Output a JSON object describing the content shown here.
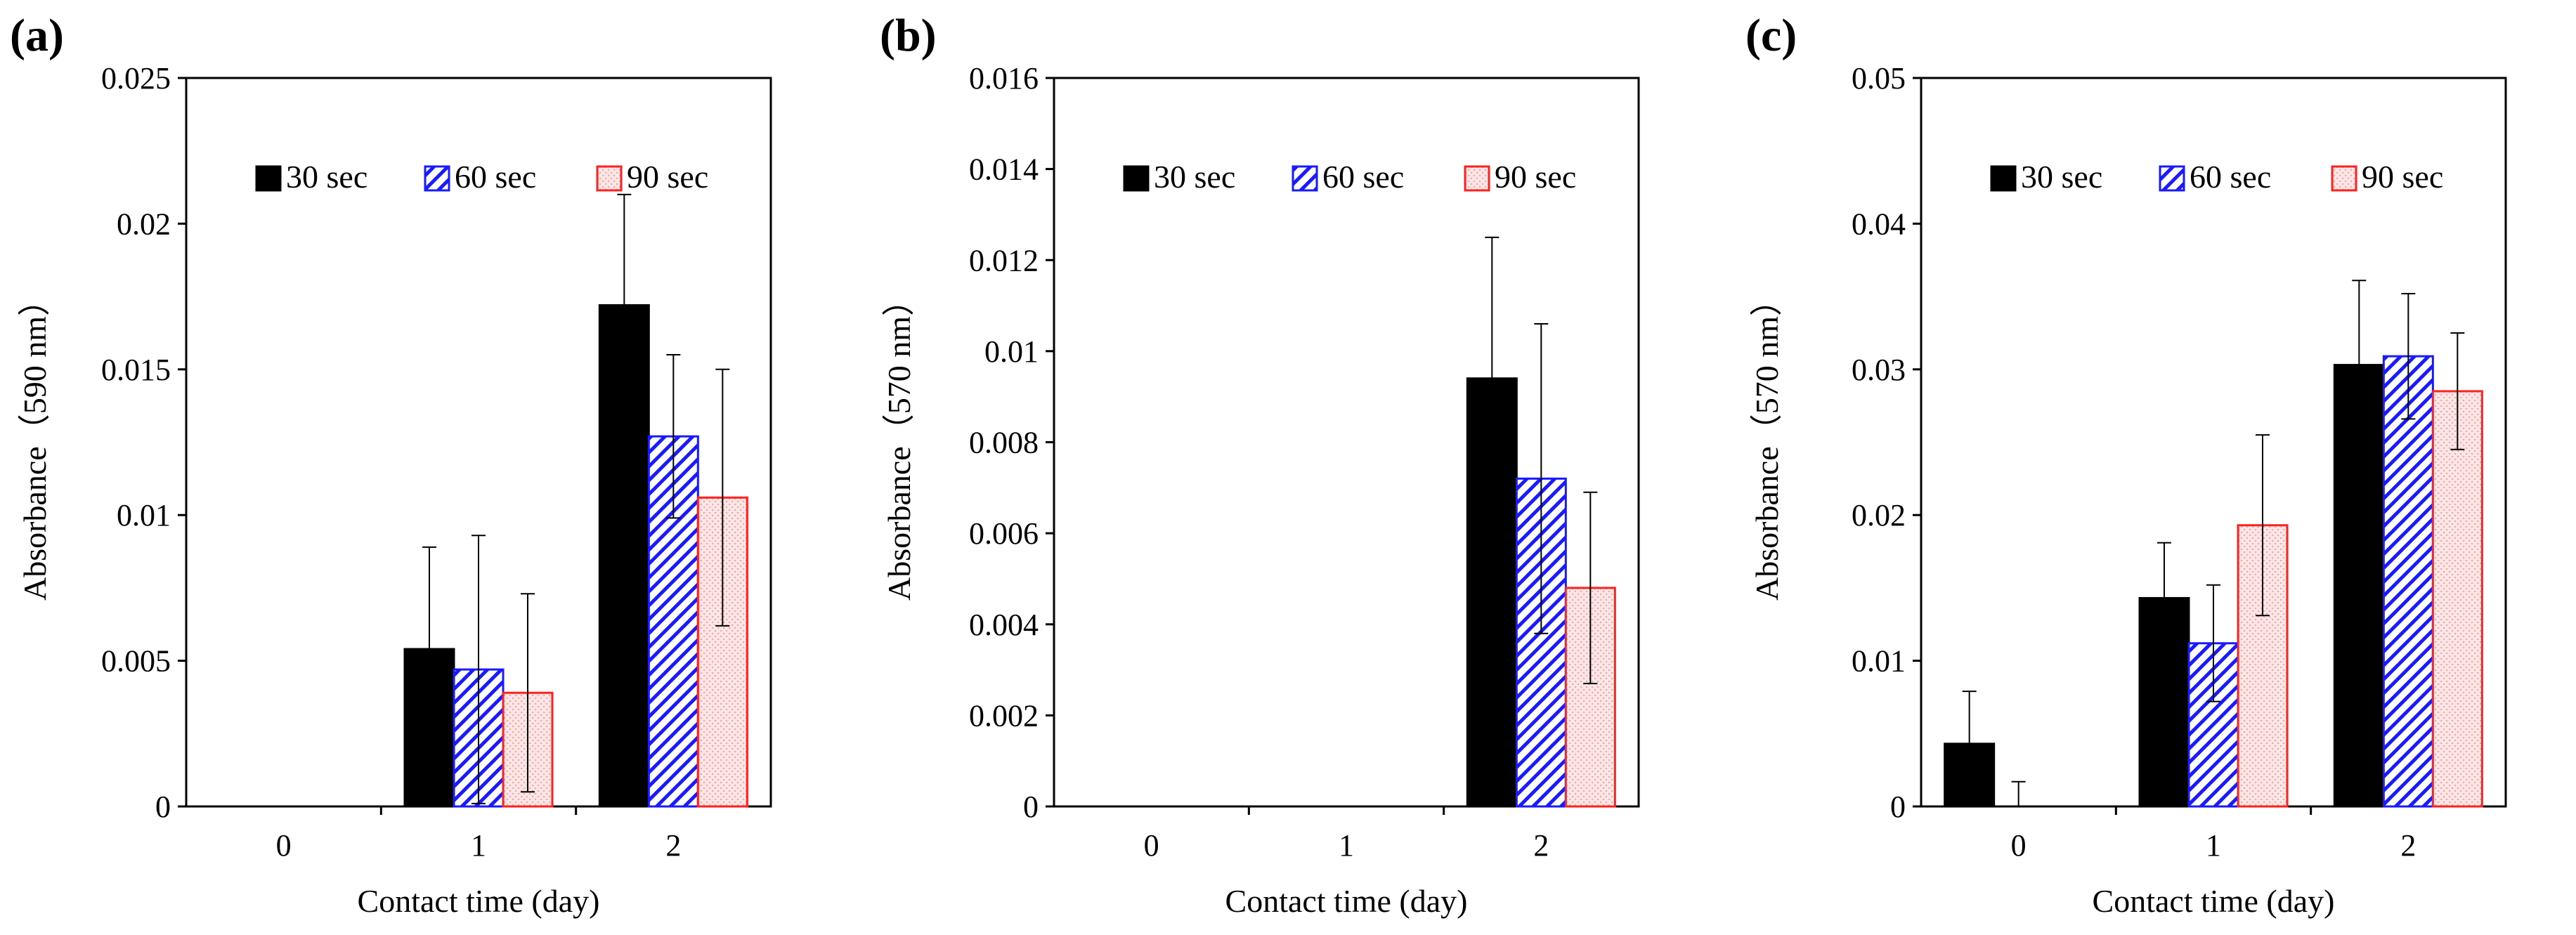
{
  "chart_data": [
    {
      "panel": "(a)",
      "type": "bar",
      "xlabel": "Contact time (day)",
      "ylabel": "Absorbance（590 nm）",
      "categories": [
        "0",
        "1",
        "2"
      ],
      "ylim": [
        0,
        0.025
      ],
      "yticks": [
        0,
        0.005,
        0.01,
        0.015,
        0.02,
        0.025
      ],
      "ytick_labels": [
        "0",
        "0.005",
        "0.01",
        "0.015",
        "0.02",
        "0.025"
      ],
      "series": [
        {
          "name": "30 sec",
          "values": [
            0,
            0.0054,
            0.0172
          ],
          "errors": [
            0,
            0.0035,
            0.0038
          ]
        },
        {
          "name": "60 sec",
          "values": [
            0,
            0.0047,
            0.0127
          ],
          "errors": [
            0,
            0.0046,
            0.0028
          ]
        },
        {
          "name": "90 sec",
          "values": [
            0,
            0.0039,
            0.0106
          ],
          "errors": [
            0,
            0.0034,
            0.0044
          ]
        }
      ]
    },
    {
      "panel": "(b)",
      "type": "bar",
      "xlabel": "Contact time (day)",
      "ylabel": "Absorbance（570 nm）",
      "categories": [
        "0",
        "1",
        "2"
      ],
      "ylim": [
        0,
        0.016
      ],
      "yticks": [
        0,
        0.002,
        0.004,
        0.006,
        0.008,
        0.01,
        0.012,
        0.014,
        0.016
      ],
      "ytick_labels": [
        "0",
        "0.002",
        "0.004",
        "0.006",
        "0.008",
        "0.01",
        "0.012",
        "0.014",
        "0.016"
      ],
      "series": [
        {
          "name": "30 sec",
          "values": [
            0,
            0,
            0.0094
          ],
          "errors": [
            0,
            0,
            0.0031
          ]
        },
        {
          "name": "60 sec",
          "values": [
            0,
            0,
            0.0072
          ],
          "errors": [
            0,
            0,
            0.0034
          ]
        },
        {
          "name": "90 sec",
          "values": [
            0,
            0,
            0.0048
          ],
          "errors": [
            0,
            0,
            0.0021
          ]
        }
      ]
    },
    {
      "panel": "(c)",
      "type": "bar",
      "xlabel": "Contact time (day)",
      "ylabel": "Absorbance（570 nm）",
      "categories": [
        "0",
        "1",
        "2"
      ],
      "ylim": [
        0,
        0.05
      ],
      "yticks": [
        0,
        0.01,
        0.02,
        0.03,
        0.04,
        0.05
      ],
      "ytick_labels": [
        "0",
        "0.01",
        "0.02",
        "0.03",
        "0.04",
        "0.05"
      ],
      "series": [
        {
          "name": "30 sec",
          "values": [
            0.0043,
            0.0143,
            0.0303
          ],
          "errors": [
            0.0036,
            0.0038,
            0.0058
          ]
        },
        {
          "name": "60 sec",
          "values": [
            0,
            0.0112,
            0.0309
          ],
          "errors": [
            0.0017,
            0.004,
            0.0043
          ]
        },
        {
          "name": "90 sec",
          "values": [
            0,
            0.0193,
            0.0285
          ],
          "errors": [
            0,
            0.0062,
            0.004
          ]
        }
      ]
    }
  ],
  "legend": {
    "position": "top",
    "items": [
      {
        "label": "30 sec",
        "style": "solid",
        "color": "#000000"
      },
      {
        "label": "60 sec",
        "style": "hatch",
        "color": "#1a1aff"
      },
      {
        "label": "90 sec",
        "style": "dots",
        "color": "#ff2020"
      }
    ]
  },
  "colors": {
    "black_fill": "#000000",
    "blue_hatch": "#1a1aff",
    "red_edge": "#ff2020",
    "red_fill": "#fde6e6"
  }
}
